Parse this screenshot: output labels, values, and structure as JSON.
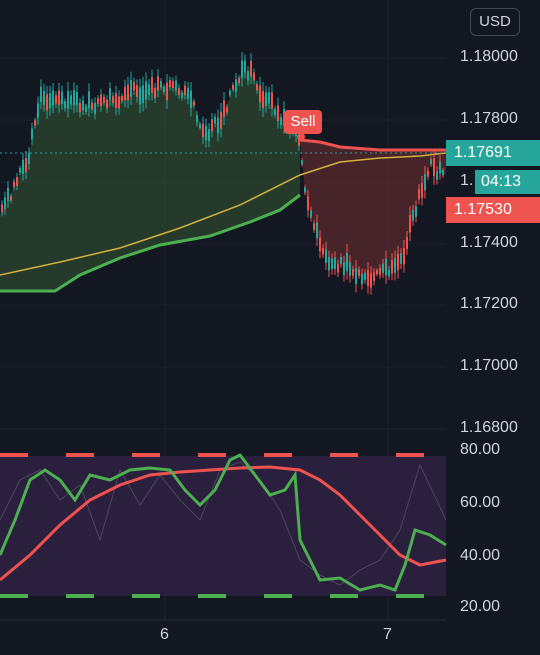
{
  "header": {
    "currency_label": "USD"
  },
  "price_axis": {
    "ticks": [
      "1.18000",
      "1.17800",
      "1.17400",
      "1.17200",
      "1.17000",
      "1.16800"
    ]
  },
  "price_tags": {
    "upper": "1.17691",
    "lower": "1.17530",
    "partial_prefix": "1.",
    "countdown": "04:13"
  },
  "signal": {
    "label": "Sell"
  },
  "oscillator_axis": {
    "ticks": [
      "80.00",
      "60.00",
      "40.00",
      "20.00"
    ]
  },
  "time_axis": {
    "labels": [
      "6",
      "7"
    ]
  },
  "colors": {
    "background": "#131722",
    "bull_fill": "#2e4a2e",
    "bear_fill": "#5a2a2e",
    "green_line": "#4caf50",
    "red_line": "#ef5350",
    "yellow_line": "#d4b13c",
    "teal_tag": "#26a69a",
    "osc_panel": "#2a1f3d"
  },
  "chart_data": {
    "type": "line",
    "price_range": [
      1.168,
      1.181
    ],
    "oscillator_range": [
      20,
      80
    ],
    "oscillator_levels": {
      "overbought": 80,
      "oversold": 20
    },
    "last_price_upper": 1.17691,
    "last_price_lower": 1.1753,
    "x_ticks": [
      "6",
      "7"
    ]
  }
}
